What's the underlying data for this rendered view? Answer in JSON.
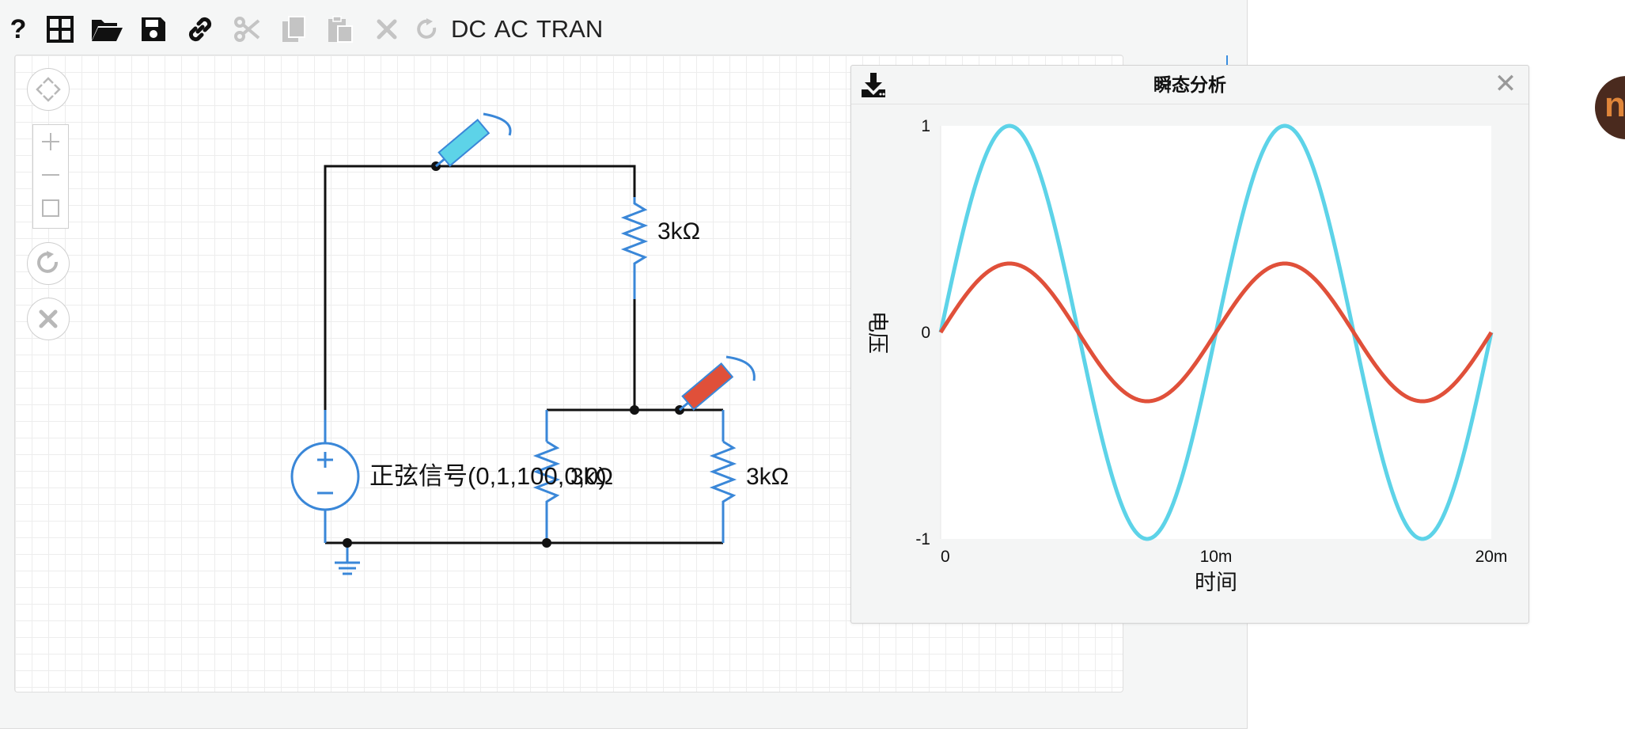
{
  "toolbar": {
    "buttons": [
      {
        "name": "help-icon",
        "label": "?"
      },
      {
        "name": "grid-icon"
      },
      {
        "name": "folder-open-icon"
      },
      {
        "name": "save-icon"
      },
      {
        "name": "link-icon"
      },
      {
        "name": "scissors-icon",
        "disabled": true
      },
      {
        "name": "copy-icon",
        "disabled": true
      },
      {
        "name": "paste-icon",
        "disabled": true
      },
      {
        "name": "delete-icon",
        "disabled": true
      },
      {
        "name": "redo-icon",
        "disabled": true
      }
    ],
    "dc_label": "DC",
    "ac_label": "AC",
    "tran_label": "TRAN"
  },
  "schematic": {
    "source_label": "正弦信号(0,1,100,0,0)",
    "resistor_top_label": "3kΩ",
    "resistor_mid_label": "3kΩ",
    "resistor_right_label": "3kΩ",
    "wire_color": "#111111",
    "component_color": "#3a87d8",
    "probe1_color": "#5dd3e8",
    "probe2_color": "#e0503a"
  },
  "analysis_window": {
    "title": "瞬态分析",
    "download_icon": "download-icon",
    "close_icon": "close-icon",
    "close_glyph": "✕"
  },
  "chart_data": {
    "type": "line",
    "title": "",
    "xlabel": "时间",
    "ylabel": "电压",
    "xlim": [
      0,
      0.02
    ],
    "ylim": [
      -1,
      1
    ],
    "x_ticks": [
      {
        "value": 0,
        "label": "0"
      },
      {
        "value": 0.01,
        "label": "10m"
      },
      {
        "value": 0.02,
        "label": "20m"
      }
    ],
    "y_ticks": [
      {
        "value": 1,
        "label": "1"
      },
      {
        "value": 0,
        "label": "0"
      },
      {
        "value": -1,
        "label": "-1"
      }
    ],
    "series": [
      {
        "color": "#5dd3e8",
        "function": "sine",
        "amplitude": 1,
        "frequency_hz": 100,
        "x_start": 0,
        "x_end": 0.02
      },
      {
        "color": "#e0503a",
        "function": "sine",
        "amplitude": 0.3333,
        "frequency_hz": 100,
        "x_start": 0,
        "x_end": 0.02
      }
    ],
    "grid": false
  },
  "side_widget": {
    "glyph": "n"
  }
}
